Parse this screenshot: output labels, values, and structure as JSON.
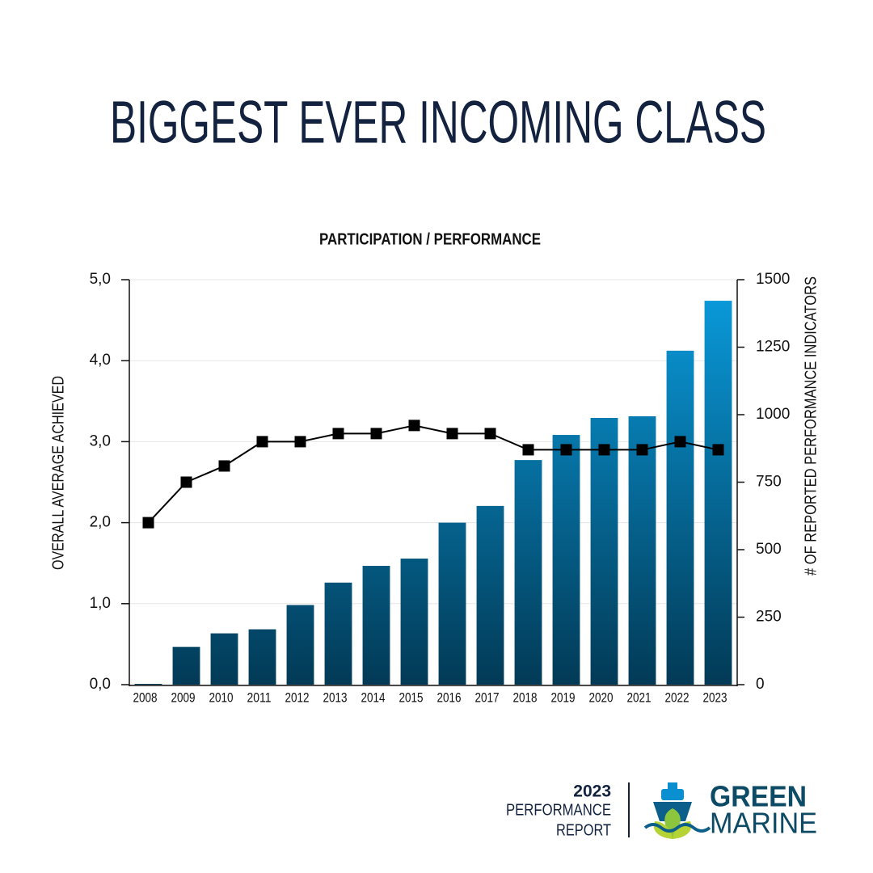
{
  "chart_data": {
    "type": "bar",
    "title": "BIGGEST EVER INCOMING CLASS",
    "subtitle": "PARTICIPATION / PERFORMANCE",
    "y_label": "OVERALL AVERAGE ACHIEVED",
    "y2_label": "# OF REPORTED PERFORMANCE INDICATORS",
    "categories": [
      "2008",
      "2009",
      "2010",
      "2011",
      "2012",
      "2013",
      "2014",
      "2015",
      "2016",
      "2017",
      "2018",
      "2019",
      "2020",
      "2021",
      "2022",
      "2023"
    ],
    "series": [
      {
        "type": "bar",
        "axis": "y2",
        "color": "#0a9ddf",
        "values": [
          3,
          140,
          190,
          205,
          295,
          378,
          440,
          467,
          600,
          662,
          832,
          925,
          988,
          994,
          1237,
          1422
        ]
      },
      {
        "type": "line",
        "axis": "y",
        "color": "#000000",
        "values": [
          2.0,
          2.5,
          2.7,
          3.0,
          3.0,
          3.1,
          3.1,
          3.2,
          3.1,
          3.1,
          2.9,
          2.9,
          2.9,
          2.9,
          3.0,
          2.9
        ]
      }
    ],
    "ylim": [
      0,
      5
    ],
    "yticks": [
      {
        "value": 0,
        "label": "0,0"
      },
      {
        "value": 1,
        "label": "1,0"
      },
      {
        "value": 2,
        "label": "2,0"
      },
      {
        "value": 3,
        "label": "3,0"
      },
      {
        "value": 4,
        "label": "4,0"
      },
      {
        "value": 5,
        "label": "5,0"
      }
    ],
    "y2lim": [
      0,
      1500
    ],
    "y2ticks": [
      0,
      250,
      500,
      750,
      1000,
      1250,
      1500
    ],
    "grid": true
  },
  "footer": {
    "year": "2023",
    "line1": "PERFORMANCE",
    "line2": "REPORT",
    "brand1": "GREEN",
    "brand2": "MARINE"
  }
}
